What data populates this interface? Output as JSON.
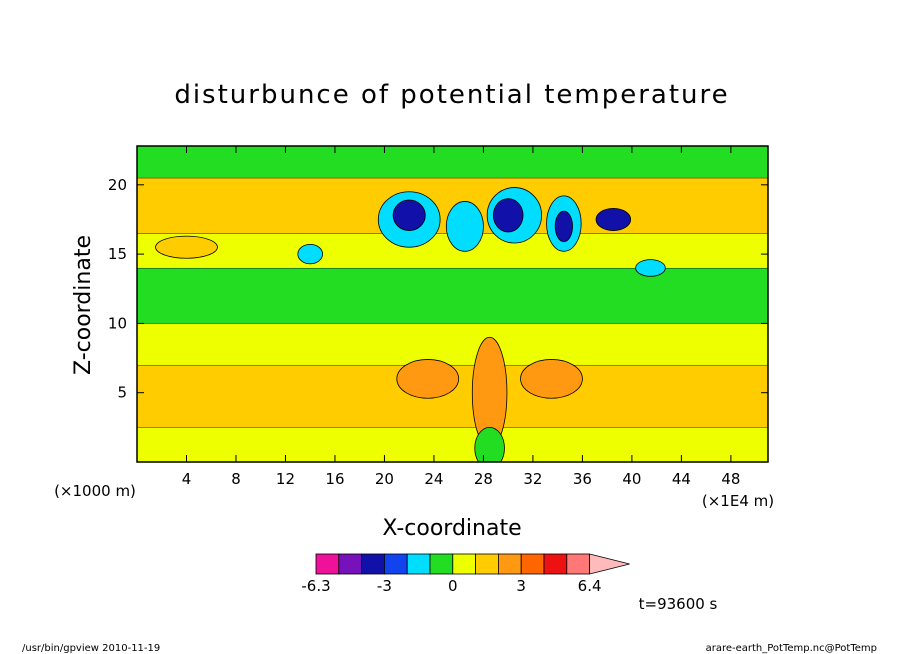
{
  "chart_data": {
    "type": "heatmap",
    "title": "disturbunce of potential temperature",
    "xlabel": "X-coordinate",
    "ylabel": "Z-coordinate",
    "x_unit_left": "(×1000 m)",
    "x_unit_right": "(×1E4 m)",
    "xlim": [
      0,
      51
    ],
    "ylim": [
      0,
      22.8
    ],
    "xticks": [
      4,
      8,
      12,
      16,
      20,
      24,
      28,
      32,
      36,
      40,
      44,
      48
    ],
    "yticks": [
      5,
      10,
      15,
      20
    ],
    "time_label": "t=93600 s",
    "colorbar": {
      "tick_labels": [
        "-6.3",
        "-3",
        "0",
        "3",
        "6.4"
      ],
      "colors": [
        "#ee1199",
        "#7711bb",
        "#1111aa",
        "#1144ee",
        "#00ddff",
        "#22dd22",
        "#eeff00",
        "#ffcc00",
        "#ff9911",
        "#ff6600",
        "#ee1111",
        "#ff7777",
        "#ffbbbb"
      ]
    },
    "bands": [
      {
        "z": [
          0.0,
          2.5
        ],
        "color": "#eeff00"
      },
      {
        "z": [
          2.5,
          7.0
        ],
        "color": "#ffcc00"
      },
      {
        "z": [
          7.0,
          10.0
        ],
        "color": "#eeff00"
      },
      {
        "z": [
          10.0,
          14.0
        ],
        "color": "#22dd22"
      },
      {
        "z": [
          14.0,
          16.5
        ],
        "color": "#eeff00"
      },
      {
        "z": [
          16.5,
          20.5
        ],
        "color": "#ffcc00"
      },
      {
        "z": [
          20.5,
          22.8
        ],
        "color": "#22dd22"
      }
    ],
    "features": [
      {
        "x": 4,
        "z": 15.5,
        "rx": 2.5,
        "rz": 0.8,
        "color": "#ffcc00"
      },
      {
        "x": 22,
        "z": 17.5,
        "rx": 2.5,
        "rz": 2.0,
        "color": "#00ddff"
      },
      {
        "x": 22,
        "z": 17.8,
        "rx": 1.3,
        "rz": 1.1,
        "color": "#1111aa"
      },
      {
        "x": 26.5,
        "z": 17.0,
        "rx": 1.5,
        "rz": 1.8,
        "color": "#00ddff"
      },
      {
        "x": 30.5,
        "z": 17.8,
        "rx": 2.2,
        "rz": 2.0,
        "color": "#00ddff"
      },
      {
        "x": 30.0,
        "z": 17.8,
        "rx": 1.2,
        "rz": 1.2,
        "color": "#1111aa"
      },
      {
        "x": 34.5,
        "z": 17.2,
        "rx": 1.4,
        "rz": 2.0,
        "color": "#00ddff"
      },
      {
        "x": 34.5,
        "z": 17.0,
        "rx": 0.7,
        "rz": 1.1,
        "color": "#1111aa"
      },
      {
        "x": 38.5,
        "z": 17.5,
        "rx": 1.4,
        "rz": 0.8,
        "color": "#1111aa"
      },
      {
        "x": 14,
        "z": 15.0,
        "rx": 1.0,
        "rz": 0.7,
        "color": "#00ddff"
      },
      {
        "x": 41.5,
        "z": 14.0,
        "rx": 1.2,
        "rz": 0.6,
        "color": "#00ddff"
      },
      {
        "x": 23.5,
        "z": 6.0,
        "rx": 2.5,
        "rz": 1.4,
        "color": "#ff9911"
      },
      {
        "x": 33.5,
        "z": 6.0,
        "rx": 2.5,
        "rz": 1.4,
        "color": "#ff9911"
      },
      {
        "x": 28.5,
        "z": 5.0,
        "rx": 1.4,
        "rz": 4.0,
        "color": "#ff9911"
      },
      {
        "x": 28.5,
        "z": 1.0,
        "rx": 1.2,
        "rz": 1.5,
        "color": "#22dd22"
      }
    ]
  },
  "footer": {
    "left": "/usr/bin/gpview   2010-11-19",
    "right": "arare-earth_PotTemp.nc@PotTemp"
  }
}
